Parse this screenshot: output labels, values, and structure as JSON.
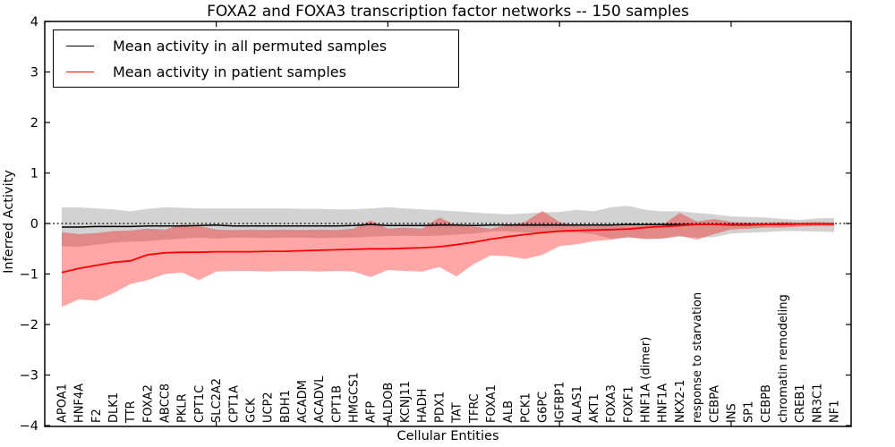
{
  "figure": {
    "title": "FOXA2 and FOXA3 transcription factor networks -- 150 samples"
  },
  "chart_data": {
    "type": "line",
    "title": "FOXA2 and FOXA3 transcription factor networks -- 150 samples",
    "xlabel": "Cellular Entities",
    "ylabel": "Inferred Activity",
    "ylim": [
      -4,
      4
    ],
    "grid": false,
    "legend_position": "upper left",
    "zero_reference_line": 0,
    "ytick_values": [
      4,
      3,
      2,
      1,
      0,
      -1,
      -2,
      -3,
      -4
    ],
    "ytick_labels": [
      "4",
      "3",
      "2",
      "1",
      "0",
      "−1",
      "−2",
      "−3",
      "−4"
    ],
    "xtick_indices": [
      9,
      19,
      29,
      39
    ],
    "categories": [
      "APOA1",
      "HNF4A",
      "F2",
      "DLK1",
      "TTR",
      "FOXA2",
      "ABCC8",
      "PKLR",
      "CPT1C",
      "SLC2A2",
      "CPT1A",
      "GCK",
      "UCP2",
      "BDH1",
      "ACADM",
      "ACADVL",
      "CPT1B",
      "HMGCS1",
      "AFP",
      "ALDOB",
      "KCNJ11",
      "HADH",
      "PDX1",
      "TAT",
      "TFRC",
      "FOXA1",
      "ALB",
      "PCK1",
      "G6PC",
      "IGFBP1",
      "ALAS1",
      "AKT1",
      "FOXA3",
      "FOXF1",
      "HNF1A (dimer)",
      "HNF1A",
      "NKX2-1",
      "response to starvation",
      "CEBPA",
      "INS",
      "SP1",
      "CEBPB",
      "chromatin remodeling",
      "CREB1",
      "NR3C1",
      "NF1"
    ],
    "series": [
      {
        "name": "Mean activity in all permuted samples",
        "color": "#000000",
        "line_width": 1.5,
        "band_color": "rgba(125,125,125,0.35)",
        "values": [
          -0.07,
          -0.07,
          -0.06,
          -0.06,
          -0.06,
          -0.05,
          -0.05,
          -0.05,
          -0.04,
          -0.03,
          -0.05,
          -0.05,
          -0.05,
          -0.05,
          -0.05,
          -0.05,
          -0.05,
          -0.04,
          -0.02,
          -0.04,
          -0.04,
          -0.04,
          -0.03,
          -0.03,
          -0.04,
          -0.03,
          -0.03,
          -0.03,
          -0.03,
          -0.03,
          -0.03,
          -0.03,
          -0.03,
          -0.02,
          -0.02,
          -0.02,
          -0.02,
          -0.02,
          -0.02,
          -0.02,
          -0.02,
          -0.02,
          -0.01,
          -0.01,
          -0.01,
          -0.01
        ],
        "band_upper": [
          0.32,
          0.32,
          0.3,
          0.28,
          0.24,
          0.29,
          0.32,
          0.31,
          0.3,
          0.3,
          0.3,
          0.3,
          0.3,
          0.3,
          0.29,
          0.29,
          0.28,
          0.28,
          0.3,
          0.32,
          0.3,
          0.28,
          0.26,
          0.24,
          0.22,
          0.2,
          0.18,
          0.2,
          0.22,
          0.23,
          0.27,
          0.24,
          0.32,
          0.35,
          0.27,
          0.24,
          0.24,
          0.21,
          0.18,
          0.14,
          0.13,
          0.12,
          0.09,
          0.07,
          0.1,
          0.11
        ],
        "band_lower": [
          -0.45,
          -0.46,
          -0.42,
          -0.38,
          -0.36,
          -0.35,
          -0.32,
          -0.3,
          -0.28,
          -0.3,
          -0.28,
          -0.28,
          -0.29,
          -0.28,
          -0.28,
          -0.29,
          -0.28,
          -0.28,
          -0.26,
          -0.25,
          -0.24,
          -0.25,
          -0.24,
          -0.22,
          -0.2,
          -0.16,
          -0.15,
          -0.18,
          -0.18,
          -0.18,
          -0.18,
          -0.21,
          -0.3,
          -0.28,
          -0.3,
          -0.3,
          -0.26,
          -0.28,
          -0.27,
          -0.2,
          -0.18,
          -0.17,
          -0.15,
          -0.15,
          -0.16,
          -0.17
        ]
      },
      {
        "name": "Mean activity in patient samples",
        "color": "#ff0000",
        "line_width": 1.8,
        "band_color": "rgba(255,0,0,0.35)",
        "values": [
          -0.97,
          -0.89,
          -0.83,
          -0.77,
          -0.74,
          -0.62,
          -0.58,
          -0.57,
          -0.57,
          -0.56,
          -0.56,
          -0.56,
          -0.55,
          -0.55,
          -0.54,
          -0.53,
          -0.52,
          -0.51,
          -0.5,
          -0.5,
          -0.49,
          -0.48,
          -0.46,
          -0.42,
          -0.37,
          -0.31,
          -0.26,
          -0.22,
          -0.18,
          -0.15,
          -0.14,
          -0.13,
          -0.12,
          -0.11,
          -0.08,
          -0.06,
          -0.04,
          -0.02,
          -0.02,
          -0.03,
          -0.03,
          -0.02,
          -0.02,
          -0.01,
          -0.01,
          -0.01
        ],
        "band_upper": [
          -0.17,
          -0.21,
          -0.19,
          -0.15,
          -0.14,
          -0.1,
          -0.12,
          -0.02,
          -0.05,
          -0.12,
          -0.13,
          -0.12,
          -0.13,
          -0.12,
          -0.13,
          -0.12,
          -0.13,
          -0.1,
          0.06,
          -0.1,
          -0.08,
          -0.1,
          0.12,
          -0.04,
          -0.06,
          -0.1,
          -0.03,
          0.03,
          0.25,
          0.03,
          -0.05,
          -0.05,
          -0.05,
          -0.04,
          -0.04,
          -0.03,
          0.21,
          0.04,
          0.09,
          0.03,
          0.02,
          0.02,
          0.03,
          0.02,
          0.03,
          0.02
        ],
        "band_lower": [
          -1.65,
          -1.5,
          -1.53,
          -1.38,
          -1.2,
          -1.12,
          -1.0,
          -0.97,
          -1.12,
          -0.95,
          -0.94,
          -0.94,
          -0.95,
          -0.94,
          -0.94,
          -0.95,
          -0.94,
          -0.95,
          -1.06,
          -0.92,
          -0.94,
          -0.95,
          -0.86,
          -1.05,
          -0.8,
          -0.63,
          -0.65,
          -0.7,
          -0.62,
          -0.45,
          -0.41,
          -0.35,
          -0.32,
          -0.27,
          -0.31,
          -0.3,
          -0.24,
          -0.32,
          -0.21,
          -0.12,
          -0.1,
          -0.08,
          -0.08,
          -0.06,
          -0.05,
          -0.05
        ]
      }
    ]
  }
}
